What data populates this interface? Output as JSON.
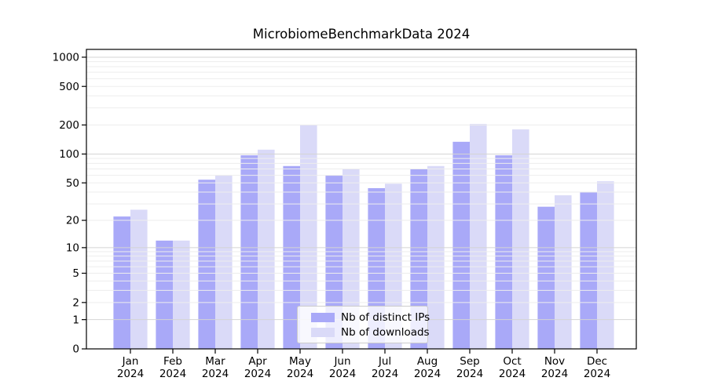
{
  "chart_data": {
    "type": "bar",
    "title": "MicrobiomeBenchmarkData 2024",
    "categories": [
      "Jan",
      "Feb",
      "Mar",
      "Apr",
      "May",
      "Jun",
      "Jul",
      "Aug",
      "Sep",
      "Oct",
      "Nov",
      "Dec"
    ],
    "x_tick_second_line": "2024",
    "series": [
      {
        "name": "Nb of distinct IPs",
        "color": "#a9a9f8",
        "values": [
          22,
          12,
          54,
          97,
          75,
          60,
          44,
          70,
          134,
          97,
          28,
          40
        ]
      },
      {
        "name": "Nb of downloads",
        "color": "#dadaf8",
        "values": [
          26,
          12,
          60,
          111,
          200,
          70,
          49,
          75,
          205,
          180,
          37,
          52
        ]
      }
    ],
    "yscale": "log10(value+1)",
    "ylim": [
      0,
      1224
    ],
    "y_ticks": [
      0,
      1,
      2,
      5,
      10,
      20,
      50,
      100,
      200,
      500,
      1000
    ],
    "y_minor_ticks": [
      3,
      4,
      6,
      7,
      8,
      9,
      30,
      40,
      60,
      70,
      80,
      90,
      300,
      400,
      600,
      700,
      800,
      900
    ],
    "grid": "horizontal, major and minor, grid drawn over bars",
    "legend_position": "lower center"
  },
  "colors": {
    "background": "#ffffff",
    "major_grid": "#d4d4d4",
    "minor_grid": "#ededed",
    "axis": "#000000",
    "text": "#000000",
    "legend_border": "#cccccc"
  }
}
